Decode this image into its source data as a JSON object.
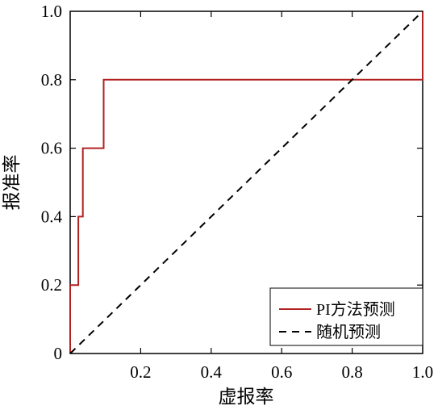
{
  "chart_data": {
    "type": "line",
    "title": "",
    "xlabel": "虚报率",
    "ylabel": "报准率",
    "xlim": [
      0,
      1
    ],
    "ylim": [
      0,
      1
    ],
    "x_ticks": [
      {
        "value": 0,
        "label": "0"
      },
      {
        "value": 0.2,
        "label": "0.2"
      },
      {
        "value": 0.4,
        "label": "0.4"
      },
      {
        "value": 0.6,
        "label": "0.6"
      },
      {
        "value": 0.8,
        "label": "0.8"
      },
      {
        "value": 1.0,
        "label": "1.0"
      }
    ],
    "y_ticks": [
      {
        "value": 0,
        "label": "0"
      },
      {
        "value": 0.2,
        "label": "0.2"
      },
      {
        "value": 0.4,
        "label": "0.4"
      },
      {
        "value": 0.6,
        "label": "0.6"
      },
      {
        "value": 0.8,
        "label": "0.8"
      },
      {
        "value": 1.0,
        "label": "1.0"
      }
    ],
    "grid": false,
    "legend_position": "bottom-right",
    "series": [
      {
        "name": "PI方法预测",
        "color": "#b22222",
        "style": "solid",
        "x": [
          0,
          0,
          0.023,
          0.023,
          0.023,
          0.023,
          0.036,
          0.036,
          0.036,
          0.036,
          0.036,
          0.095,
          0.095,
          1.0,
          1.0
        ],
        "y": [
          0,
          0.2,
          0.2,
          0.4,
          0.4,
          0.4,
          0.4,
          0.6,
          0.6,
          0.6,
          0.6,
          0.6,
          0.8,
          0.8,
          1.0
        ]
      },
      {
        "name": "随机预测",
        "color": "#000000",
        "style": "dashed",
        "x": [
          0,
          1
        ],
        "y": [
          0,
          1
        ]
      }
    ]
  }
}
